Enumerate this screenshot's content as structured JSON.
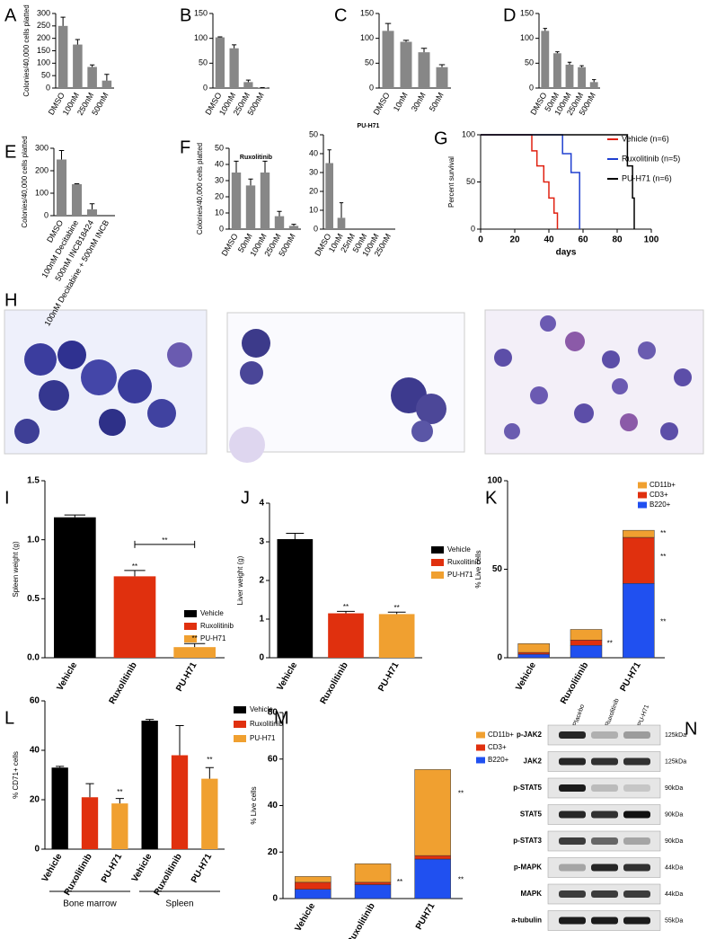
{
  "chart_data": [
    {
      "type": "bar",
      "panel": "A",
      "ylabel": "Colonies/40,000 cells platted",
      "categories": [
        "DMSO",
        "100nM",
        "250nM",
        "500nM"
      ],
      "values": [
        250,
        175,
        85,
        30
      ],
      "errors": [
        35,
        20,
        8,
        25
      ],
      "color": "#878787",
      "ylim": [
        0,
        300
      ],
      "yticks": [
        0,
        50,
        100,
        150,
        200,
        250,
        300
      ]
    },
    {
      "type": "bar",
      "panel": "B",
      "categories": [
        "DMSO",
        "100nM",
        "250nM",
        "500nM"
      ],
      "values": [
        102,
        80,
        12,
        1
      ],
      "errors": [
        1,
        7,
        4,
        0
      ],
      "color": "#878787",
      "ylim": [
        0,
        150
      ],
      "yticks": [
        0,
        50,
        100,
        150
      ]
    },
    {
      "type": "bar",
      "panel": "C",
      "categories": [
        "DMSO",
        "10nM",
        "30nM",
        "50nM"
      ],
      "values": [
        115,
        93,
        72,
        42
      ],
      "errors": [
        15,
        3,
        8,
        5
      ],
      "color": "#878787",
      "ylim": [
        0,
        150
      ],
      "yticks": [
        0,
        50,
        100,
        150
      ]
    },
    {
      "type": "bar",
      "panel": "D",
      "categories": [
        "DMSO",
        "50nM",
        "100nM",
        "250nM",
        "500nM"
      ],
      "values": [
        115,
        70,
        47,
        42,
        12
      ],
      "errors": [
        5,
        3,
        5,
        3,
        5
      ],
      "color": "#878787",
      "ylim": [
        0,
        150
      ],
      "yticks": [
        0,
        50,
        100,
        150
      ]
    },
    {
      "type": "bar",
      "panel": "E",
      "ylabel": "Colonies/40,000 cells platted",
      "categories": [
        "DMSO",
        "100nM Decitabine",
        "500nM INCB18424",
        "100nM Decitabine + 500nM INCB"
      ],
      "values": [
        250,
        140,
        28,
        0
      ],
      "errors": [
        40,
        2,
        25,
        0
      ],
      "color": "#878787",
      "ylim": [
        0,
        300
      ],
      "yticks": [
        0,
        100,
        200,
        300
      ]
    },
    {
      "type": "bar",
      "panel": "F",
      "subtitle": "Ruxolitinib",
      "ylabel": "Colonies/40,000 cells platted",
      "categories": [
        "DMSO",
        "50nM",
        "100nM",
        "250nM",
        "500nM"
      ],
      "values": [
        35,
        27,
        35,
        8,
        2
      ],
      "errors": [
        7,
        4,
        7,
        3,
        1
      ],
      "color": "#878787",
      "ylim": [
        0,
        50
      ],
      "yticks": [
        0,
        10,
        20,
        30,
        40,
        50
      ]
    },
    {
      "type": "bar",
      "subtitle": "PU-H71",
      "categories": [
        "DMSO",
        "10nM",
        "25nM",
        "50nM",
        "100nM",
        "250nM"
      ],
      "values": [
        35,
        6,
        0,
        0,
        0,
        0
      ],
      "errors": [
        7,
        8,
        0,
        0,
        0,
        0
      ],
      "color": "#878787",
      "ylim": [
        0,
        50
      ],
      "yticks": [
        0,
        10,
        20,
        30,
        40,
        50
      ]
    },
    {
      "type": "line",
      "panel": "G",
      "xlabel": "days",
      "ylabel": "Percent survival",
      "xlim": [
        0,
        100
      ],
      "xticks": [
        0,
        20,
        40,
        60,
        80,
        100
      ],
      "ylim": [
        0,
        100
      ],
      "yticks": [
        0,
        50,
        100
      ],
      "series": [
        {
          "name": "Vehicle (n=6)",
          "color": "#e02010",
          "x": [
            0,
            30,
            30,
            33,
            33,
            37,
            37,
            40,
            40,
            43,
            43,
            45,
            45
          ],
          "values": [
            100,
            100,
            83,
            83,
            67,
            67,
            50,
            50,
            33,
            33,
            17,
            17,
            0
          ]
        },
        {
          "name": "Ruxolitinib (n=5)",
          "color": "#2040d0",
          "x": [
            0,
            48,
            48,
            53,
            53,
            58,
            58
          ],
          "values": [
            100,
            100,
            80,
            80,
            60,
            60,
            0
          ]
        },
        {
          "name": "PU-H71 (n=6)",
          "color": "#000000",
          "x": [
            0,
            86,
            86,
            89,
            89,
            90,
            90
          ],
          "values": [
            100,
            100,
            67,
            67,
            33,
            33,
            0
          ]
        }
      ]
    },
    {
      "type": "bar",
      "panel": "I",
      "ylabel": "Spleen weight (g)",
      "legend": true,
      "categories": [
        "Vehicle",
        "Ruxolitinib",
        "PU-H71"
      ],
      "values": [
        1.19,
        0.69,
        0.09
      ],
      "errors": [
        0.02,
        0.05,
        0.03
      ],
      "colors": [
        "#000000",
        "#e0300e",
        "#f0a030"
      ],
      "ylim": [
        0,
        1.5
      ],
      "yticks": [
        {
          "value": 0,
          "label": "0.0"
        },
        0.5,
        {
          "value": 1,
          "label": "1.0"
        },
        1.5
      ],
      "annotations": [
        "**",
        "**",
        "**"
      ]
    },
    {
      "type": "bar",
      "panel": "J",
      "ylabel": "Liver weight (g)",
      "legend": true,
      "categories": [
        "Vehicle",
        "Ruxolitinib",
        "PU-H71"
      ],
      "values": [
        3.07,
        1.15,
        1.13
      ],
      "errors": [
        0.15,
        0.05,
        0.05
      ],
      "colors": [
        "#000000",
        "#e0300e",
        "#f0a030"
      ],
      "ylim": [
        0,
        4
      ],
      "yticks": [
        0,
        1,
        2,
        3,
        4
      ],
      "annotations": [
        "**",
        "**"
      ]
    },
    {
      "type": "stacked_bar",
      "panel": "K",
      "ylabel": "% Live cells",
      "categories": [
        "Vehicle",
        "Ruxolitinib",
        "PU-H71"
      ],
      "ylim": [
        0,
        100
      ],
      "yticks": [
        0,
        50,
        100
      ],
      "series": [
        {
          "name": "B220+",
          "color": "#2050f0",
          "values": [
            2,
            7,
            42
          ]
        },
        {
          "name": "CD3+",
          "color": "#e0300e",
          "values": [
            1,
            3,
            26
          ]
        },
        {
          "name": "CD11b+",
          "color": "#f0a030",
          "values": [
            5,
            6,
            4
          ]
        }
      ],
      "annotations": [
        "**",
        "**",
        "**",
        "**"
      ]
    },
    {
      "type": "bar",
      "panel": "L",
      "ylabel": "% CD71+ cells",
      "legend": true,
      "categories": [
        "Vehicle",
        "Ruxolitinib",
        "PU-H71",
        "Vehicle",
        "Ruxolitinib",
        "PU-H71"
      ],
      "values": [
        33,
        21,
        18.5,
        52,
        38,
        28.5
      ],
      "errors": [
        0.5,
        5.5,
        2,
        0.5,
        12,
        4.5
      ],
      "colors": [
        "#000000",
        "#e0300e",
        "#f0a030",
        "#000000",
        "#e0300e",
        "#f0a030"
      ],
      "ylim": [
        0,
        60
      ],
      "yticks": [
        0,
        20,
        40,
        60
      ],
      "groups": [
        "Bone marrow",
        "Spleen"
      ],
      "annotations": [
        "**",
        "**"
      ]
    },
    {
      "type": "stacked_bar",
      "panel": "M",
      "ylabel": "% Live cells",
      "categories": [
        "Vehicle",
        "Ruxolitinib",
        "PUH71"
      ],
      "ylim": [
        0,
        80
      ],
      "yticks": [
        0,
        20,
        40,
        60,
        80
      ],
      "series": [
        {
          "name": "B220+",
          "color": "#2050f0",
          "values": [
            4,
            6,
            17
          ]
        },
        {
          "name": "CD3+",
          "color": "#e0300e",
          "values": [
            3,
            1,
            1.5
          ]
        },
        {
          "name": "CD11b+",
          "color": "#f0a030",
          "values": [
            2.5,
            8,
            37
          ]
        }
      ],
      "annotations": [
        "**",
        "**",
        "**"
      ]
    }
  ],
  "images": {
    "panel": "H"
  },
  "blot": {
    "panel": "N",
    "columns": [
      "Placebo",
      "Ruxolitinib",
      "PU-H71"
    ],
    "rows": [
      {
        "label": "p-JAK2",
        "size": "125kDa"
      },
      {
        "label": "JAK2",
        "size": "125kDa"
      },
      {
        "label": "p-STAT5",
        "size": "90kDa"
      },
      {
        "label": "STAT5",
        "size": "90kDa"
      },
      {
        "label": "p-STAT3",
        "size": "90kDa"
      },
      {
        "label": "p-MAPK",
        "size": "44kDa"
      },
      {
        "label": "MAPK",
        "size": "44kDa"
      },
      {
        "label": "a-tubulin",
        "size": "55kDa"
      }
    ]
  }
}
